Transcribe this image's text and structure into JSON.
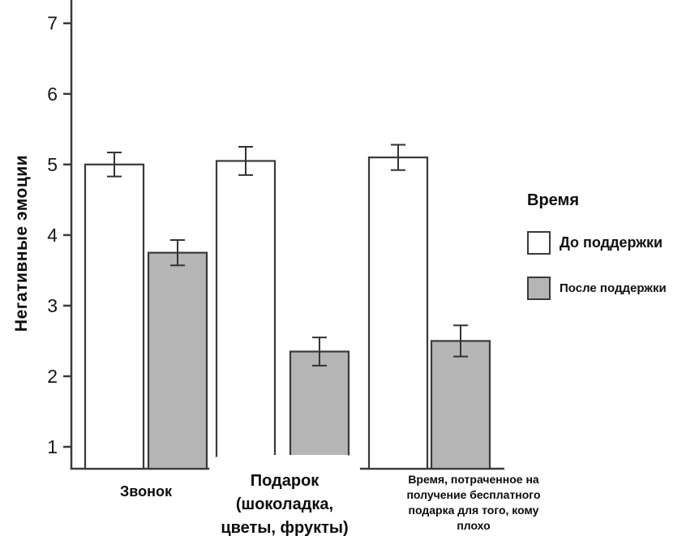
{
  "chart_data": {
    "type": "bar",
    "title": "",
    "xlabel": "",
    "ylabel": "Негативные эмоции",
    "ylim": [
      0.69,
      7.33
    ],
    "yticks": [
      1,
      2,
      3,
      4,
      5,
      6,
      7
    ],
    "grid": false,
    "axis_color": "#3a3a3a",
    "error_bar_color": "#333333",
    "categories": [
      "Звонок",
      "Подарок\n(шоколадка,\nцветы, фрукты)",
      "Время, потраченное на\nполучение бесплатного\nподарка для того, кому\nплохо"
    ],
    "legend": {
      "title": "Время",
      "position": "right"
    },
    "series": [
      {
        "name": "До поддержки",
        "color": "#ffffff",
        "values": [
          5.0,
          5.05,
          5.1
        ],
        "errors": [
          0.17,
          0.2,
          0.18
        ]
      },
      {
        "name": "После поддержки",
        "color": "#b5b5b5",
        "values": [
          3.75,
          2.35,
          2.5
        ],
        "errors": [
          0.18,
          0.2,
          0.22
        ]
      }
    ]
  }
}
